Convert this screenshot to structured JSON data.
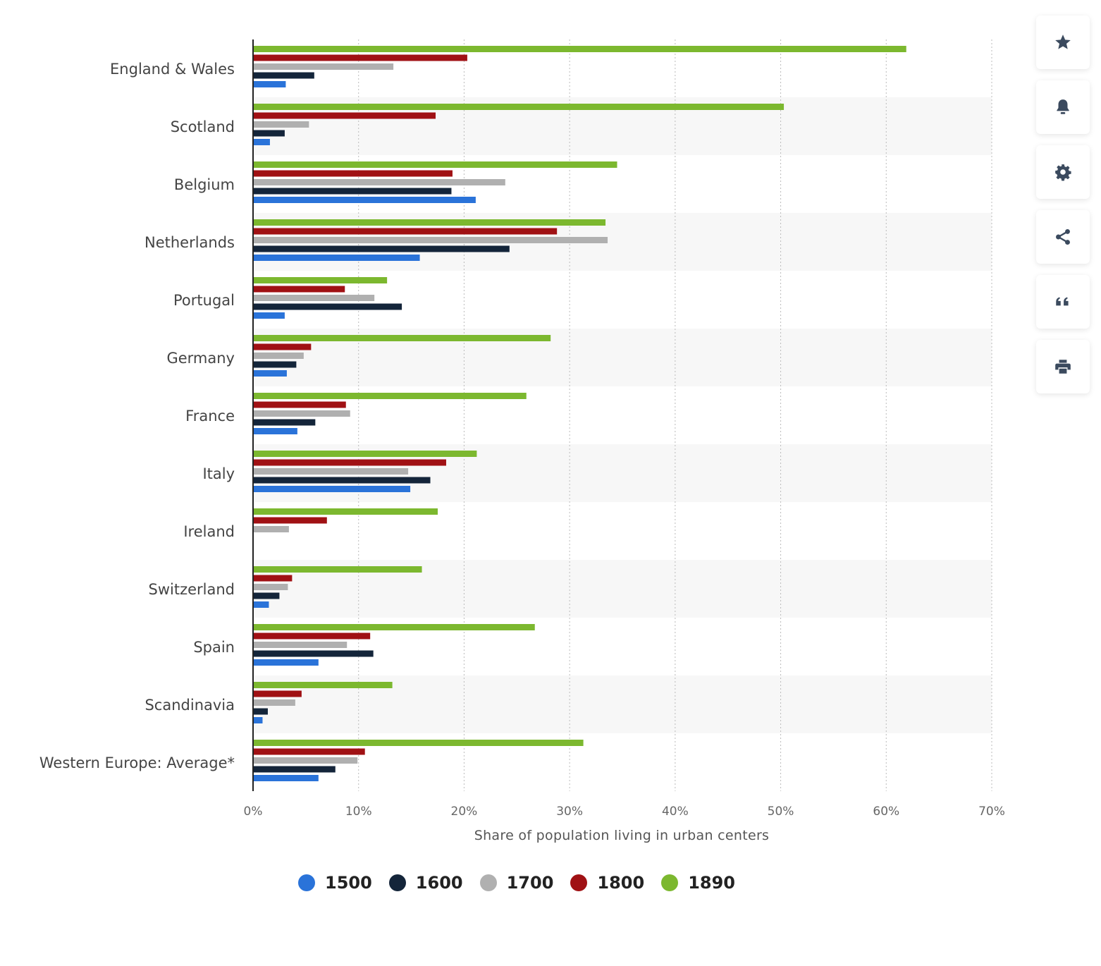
{
  "chart_data": {
    "type": "bar",
    "orientation": "horizontal",
    "title": "",
    "xlabel": "Share of population living in urban centers",
    "ylabel": "",
    "xlim": [
      0,
      70
    ],
    "x_ticks": [
      "0%",
      "10%",
      "20%",
      "30%",
      "40%",
      "50%",
      "60%",
      "70%"
    ],
    "x_tick_values": [
      0,
      10,
      20,
      30,
      40,
      50,
      60,
      70
    ],
    "grid": true,
    "legend_position": "bottom",
    "categories": [
      "England & Wales",
      "Scotland",
      "Belgium",
      "Netherlands",
      "Portugal",
      "Germany",
      "France",
      "Italy",
      "Ireland",
      "Switzerland",
      "Spain",
      "Scandinavia",
      "Western Europe: Average*"
    ],
    "series": [
      {
        "name": "1890",
        "color": "#7cb82f",
        "values": [
          61.9,
          50.3,
          34.5,
          33.4,
          12.7,
          28.2,
          25.9,
          21.2,
          17.5,
          16.0,
          26.7,
          13.2,
          31.3
        ]
      },
      {
        "name": "1800",
        "color": "#a01114",
        "values": [
          20.3,
          17.3,
          18.9,
          28.8,
          8.7,
          5.5,
          8.8,
          18.3,
          7.0,
          3.7,
          11.1,
          4.6,
          10.6
        ]
      },
      {
        "name": "1700",
        "color": "#b0b0b0",
        "values": [
          13.3,
          5.3,
          23.9,
          33.6,
          11.5,
          4.8,
          9.2,
          14.7,
          3.4,
          3.3,
          8.9,
          4.0,
          9.9
        ]
      },
      {
        "name": "1600",
        "color": "#14253a",
        "values": [
          5.8,
          3.0,
          18.8,
          24.3,
          14.1,
          4.1,
          5.9,
          16.8,
          0,
          2.5,
          11.4,
          1.4,
          7.8
        ]
      },
      {
        "name": "1500",
        "color": "#2a73d9",
        "values": [
          3.1,
          1.6,
          21.1,
          15.8,
          3.0,
          3.2,
          4.2,
          14.9,
          0,
          1.5,
          6.2,
          0.9,
          6.2
        ]
      }
    ],
    "legend_order": [
      "1500",
      "1600",
      "1700",
      "1800",
      "1890"
    ]
  },
  "toolbar": {
    "buttons": [
      {
        "icon": "star-icon",
        "label": "favorite"
      },
      {
        "icon": "bell-icon",
        "label": "notifications"
      },
      {
        "icon": "gear-icon",
        "label": "settings"
      },
      {
        "icon": "share-icon",
        "label": "share"
      },
      {
        "icon": "quote-icon",
        "label": "cite"
      },
      {
        "icon": "print-icon",
        "label": "print"
      }
    ]
  }
}
